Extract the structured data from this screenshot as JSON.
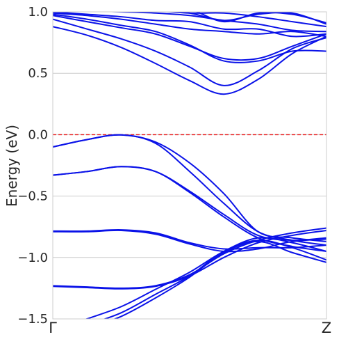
{
  "chart_data": {
    "type": "line",
    "title": "",
    "xlabel": "",
    "ylabel": "Energy (eV)",
    "xlim": [
      0,
      1
    ],
    "ylim": [
      -1.5,
      1.0
    ],
    "grid": "horizontal",
    "yticks": [
      {
        "value": -1.5,
        "label": "−1.5"
      },
      {
        "value": -1.0,
        "label": "−1.0"
      },
      {
        "value": -0.5,
        "label": "−0.5"
      },
      {
        "value": 0.0,
        "label": "0.0"
      },
      {
        "value": 0.5,
        "label": "0.5"
      },
      {
        "value": 1.0,
        "label": "1.0"
      }
    ],
    "xticks": [
      {
        "value": 0,
        "label": "Γ"
      },
      {
        "value": 1,
        "label": "Z"
      }
    ],
    "fermi_level": {
      "value": 0.0,
      "color": "#e8191b",
      "style": "dashed"
    },
    "band_color": "#0a12e8",
    "x": [
      0,
      0.125,
      0.25,
      0.375,
      0.5,
      0.625,
      0.75,
      0.875,
      1.0
    ],
    "series": [
      {
        "values": [
          -0.1,
          -0.04,
          -0.002,
          -0.07,
          -0.3,
          -0.56,
          -0.79,
          -0.86,
          -0.9
        ]
      },
      {
        "values": [
          -0.1,
          -0.04,
          -0.002,
          -0.06,
          -0.23,
          -0.48,
          -0.79,
          -0.84,
          -0.87
        ]
      },
      {
        "values": [
          -0.33,
          -0.3,
          -0.26,
          -0.3,
          -0.47,
          -0.67,
          -0.84,
          -0.91,
          -0.95
        ]
      },
      {
        "values": [
          -0.33,
          -0.3,
          -0.26,
          -0.3,
          -0.46,
          -0.65,
          -0.82,
          -0.86,
          -0.84
        ]
      },
      {
        "values": [
          -0.785,
          -0.785,
          -0.775,
          -0.8,
          -0.88,
          -0.93,
          -0.92,
          -0.92,
          -0.9
        ]
      },
      {
        "values": [
          -0.79,
          -0.79,
          -0.78,
          -0.81,
          -0.89,
          -0.95,
          -0.93,
          -0.87,
          -0.85
        ]
      },
      {
        "values": [
          -1.23,
          -1.24,
          -1.25,
          -1.23,
          -1.14,
          -0.97,
          -0.86,
          -0.8,
          -0.76
        ]
      },
      {
        "values": [
          -1.235,
          -1.245,
          -1.255,
          -1.235,
          -1.15,
          -1.0,
          -0.88,
          -0.82,
          -0.78
        ]
      },
      {
        "values": [
          -1.6,
          -1.5,
          -1.4,
          -1.26,
          -1.12,
          -0.95,
          -0.84,
          -0.88,
          -0.95
        ]
      },
      {
        "values": [
          -1.65,
          -1.55,
          -1.45,
          -1.3,
          -1.15,
          -0.95,
          -0.86,
          -0.92,
          -1.02
        ]
      },
      {
        "values": [
          -1.7,
          -1.58,
          -1.48,
          -1.33,
          -1.16,
          -0.96,
          -0.87,
          -0.96,
          -1.04
        ]
      },
      {
        "values": [
          0.88,
          0.81,
          0.71,
          0.58,
          0.44,
          0.33,
          0.45,
          0.66,
          0.8
        ]
      },
      {
        "values": [
          0.94,
          0.86,
          0.78,
          0.68,
          0.55,
          0.4,
          0.52,
          0.7,
          0.79
        ]
      },
      {
        "values": [
          0.97,
          0.92,
          0.87,
          0.82,
          0.72,
          0.62,
          0.62,
          0.72,
          0.82
        ]
      },
      {
        "values": [
          0.98,
          0.94,
          0.89,
          0.84,
          0.73,
          0.6,
          0.6,
          0.68,
          0.68
        ]
      },
      {
        "values": [
          0.99,
          0.97,
          0.94,
          0.9,
          0.86,
          0.84,
          0.82,
          0.84,
          0.8
        ]
      },
      {
        "values": [
          1.0,
          0.98,
          0.96,
          0.93,
          0.92,
          0.86,
          0.86,
          0.8,
          0.82
        ]
      },
      {
        "values": [
          1.02,
          1.01,
          1.0,
          0.99,
          0.97,
          0.93,
          0.9,
          0.85,
          0.84
        ]
      },
      {
        "values": [
          1.05,
          1.04,
          1.03,
          1.01,
          0.99,
          0.99,
          0.96,
          0.92,
          0.88
        ]
      },
      {
        "values": [
          1.06,
          1.05,
          1.04,
          1.02,
          0.99,
          0.93,
          0.98,
          0.99,
          0.9
        ]
      },
      {
        "values": [
          1.08,
          1.07,
          1.06,
          1.04,
          1.02,
          0.92,
          0.99,
          0.98,
          0.91
        ]
      }
    ]
  }
}
